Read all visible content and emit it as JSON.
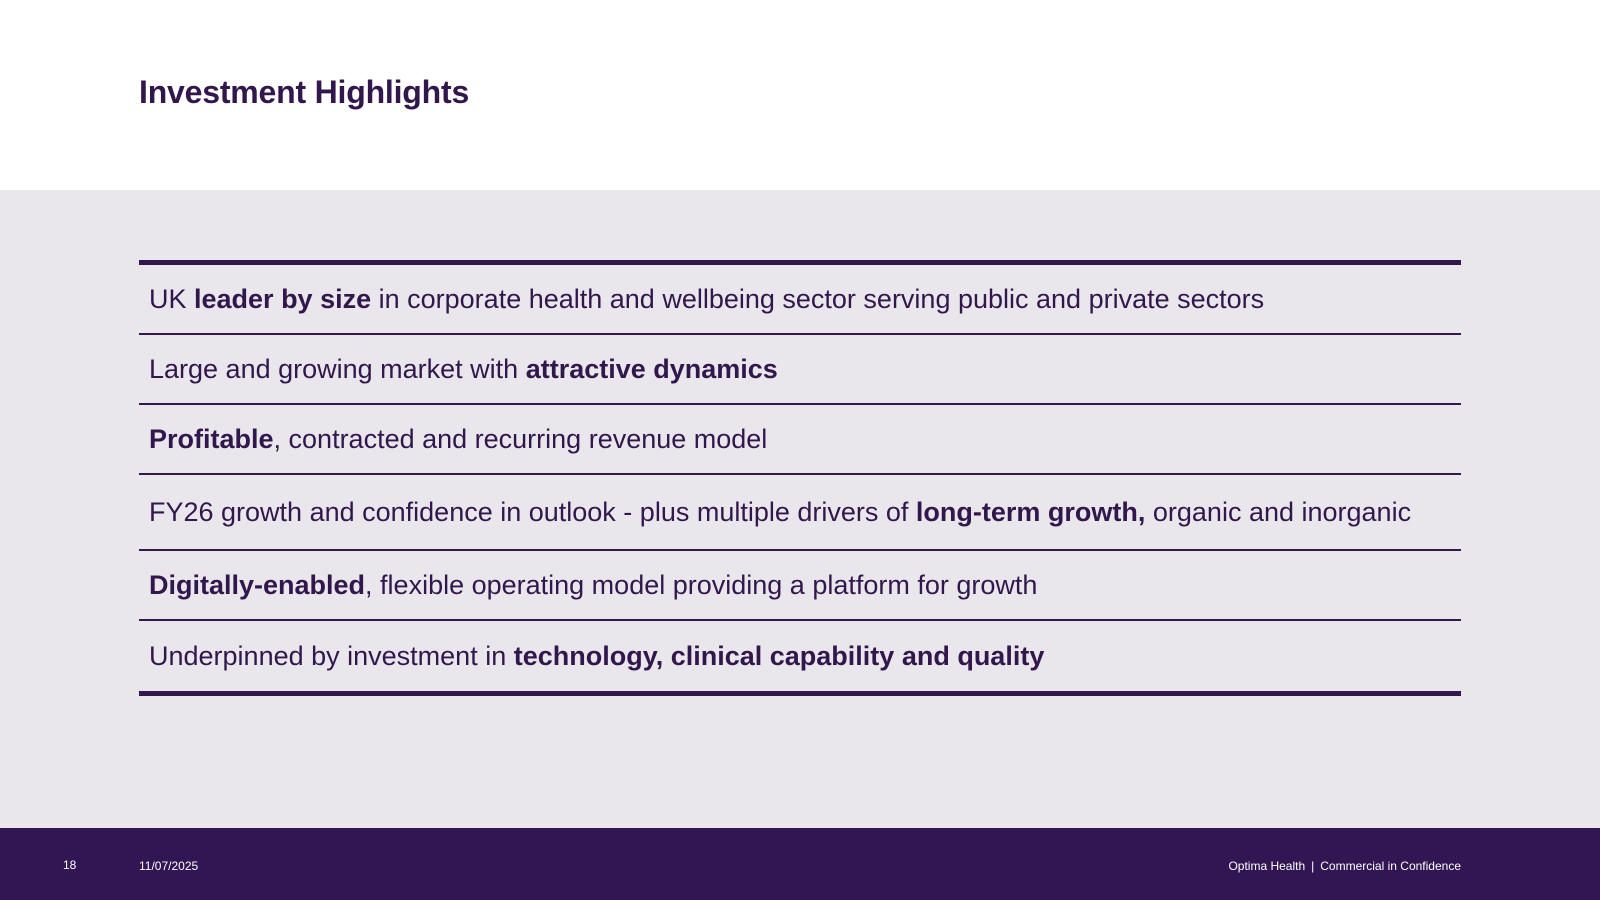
{
  "title": "Investment Highlights",
  "highlights": [
    {
      "parts": [
        {
          "text": "UK ",
          "bold": false
        },
        {
          "text": "leader by size",
          "bold": true
        },
        {
          "text": " in corporate health and wellbeing sector serving public and private sectors",
          "bold": false
        }
      ]
    },
    {
      "parts": [
        {
          "text": "Large and growing market with ",
          "bold": false
        },
        {
          "text": "attractive dynamics",
          "bold": true
        }
      ]
    },
    {
      "parts": [
        {
          "text": "Profitable",
          "bold": true
        },
        {
          "text": ", contracted and recurring revenue model",
          "bold": false
        }
      ]
    },
    {
      "parts": [
        {
          "text": "FY26 growth and confidence in outlook - plus multiple drivers of ",
          "bold": false
        },
        {
          "text": "long-term growth,",
          "bold": true
        },
        {
          "text": " organic and inorganic",
          "bold": false
        }
      ]
    },
    {
      "parts": [
        {
          "text": "Digitally-enabled",
          "bold": true
        },
        {
          "text": ", flexible operating model providing a platform for growth",
          "bold": false
        }
      ]
    },
    {
      "parts": [
        {
          "text": "Underpinned by investment in ",
          "bold": false
        },
        {
          "text": "technology, clinical capability and quality",
          "bold": true
        }
      ]
    }
  ],
  "footer": {
    "page_number": "18",
    "date": "11/07/2025",
    "company": "Optima Health",
    "separator": "|",
    "confidentiality": "Commercial in Confidence"
  },
  "colors": {
    "brand_purple": "#32174d",
    "content_background": "#e9e7ec",
    "footer_background": "#321653"
  }
}
